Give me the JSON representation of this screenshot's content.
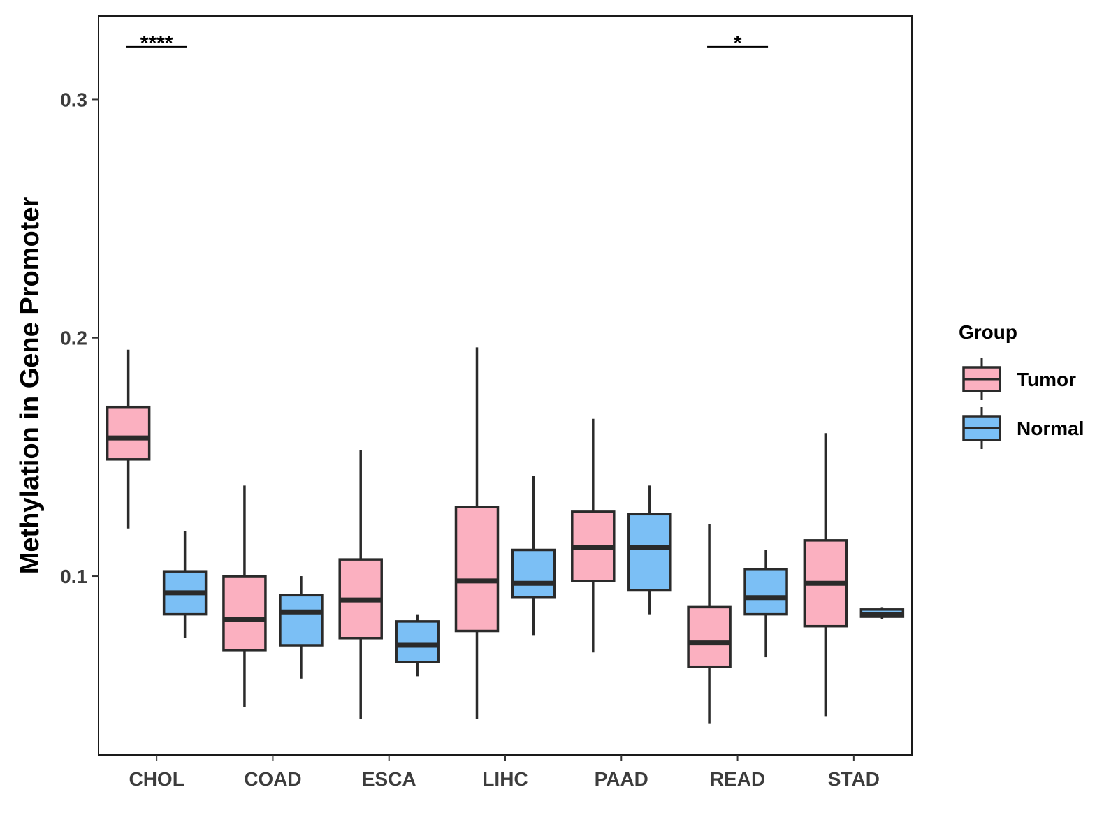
{
  "chart_data": {
    "type": "boxplot",
    "title": "",
    "xlabel": "",
    "ylabel": "Methylation in Gene Promoter",
    "ylim": [
      0.025,
      0.335
    ],
    "y_ticks": [
      0.1,
      0.2,
      0.3
    ],
    "y_tick_labels": [
      "0.1",
      "0.2",
      "0.3"
    ],
    "categories": [
      "CHOL",
      "COAD",
      "ESCA",
      "LIHC",
      "PAAD",
      "READ",
      "STAD"
    ],
    "legend": {
      "title": "Group",
      "position": "right"
    },
    "series": [
      {
        "name": "Tumor",
        "color": "#fbb0c0",
        "boxes": [
          {
            "whisker_low": 0.12,
            "q1": 0.149,
            "median": 0.158,
            "q3": 0.171,
            "whisker_high": 0.195
          },
          {
            "whisker_low": 0.045,
            "q1": 0.069,
            "median": 0.082,
            "q3": 0.1,
            "whisker_high": 0.138
          },
          {
            "whisker_low": 0.04,
            "q1": 0.074,
            "median": 0.09,
            "q3": 0.107,
            "whisker_high": 0.153
          },
          {
            "whisker_low": 0.04,
            "q1": 0.077,
            "median": 0.098,
            "q3": 0.129,
            "whisker_high": 0.196
          },
          {
            "whisker_low": 0.068,
            "q1": 0.098,
            "median": 0.112,
            "q3": 0.127,
            "whisker_high": 0.166
          },
          {
            "whisker_low": 0.038,
            "q1": 0.062,
            "median": 0.072,
            "q3": 0.087,
            "whisker_high": 0.122
          },
          {
            "whisker_low": 0.041,
            "q1": 0.079,
            "median": 0.097,
            "q3": 0.115,
            "whisker_high": 0.16
          }
        ]
      },
      {
        "name": "Normal",
        "color": "#7bbff5",
        "boxes": [
          {
            "whisker_low": 0.074,
            "q1": 0.084,
            "median": 0.093,
            "q3": 0.102,
            "whisker_high": 0.119
          },
          {
            "whisker_low": 0.057,
            "q1": 0.071,
            "median": 0.085,
            "q3": 0.092,
            "whisker_high": 0.1
          },
          {
            "whisker_low": 0.058,
            "q1": 0.064,
            "median": 0.071,
            "q3": 0.081,
            "whisker_high": 0.084
          },
          {
            "whisker_low": 0.075,
            "q1": 0.091,
            "median": 0.097,
            "q3": 0.111,
            "whisker_high": 0.142
          },
          {
            "whisker_low": 0.084,
            "q1": 0.094,
            "median": 0.112,
            "q3": 0.126,
            "whisker_high": 0.138
          },
          {
            "whisker_low": 0.066,
            "q1": 0.084,
            "median": 0.091,
            "q3": 0.103,
            "whisker_high": 0.111
          },
          {
            "whisker_low": 0.082,
            "q1": 0.083,
            "median": 0.084,
            "q3": 0.086,
            "whisker_high": 0.087
          }
        ]
      }
    ],
    "significance": [
      {
        "category": "CHOL",
        "label": "****",
        "y": 0.322
      },
      {
        "category": "READ",
        "label": "*",
        "y": 0.322
      }
    ]
  }
}
